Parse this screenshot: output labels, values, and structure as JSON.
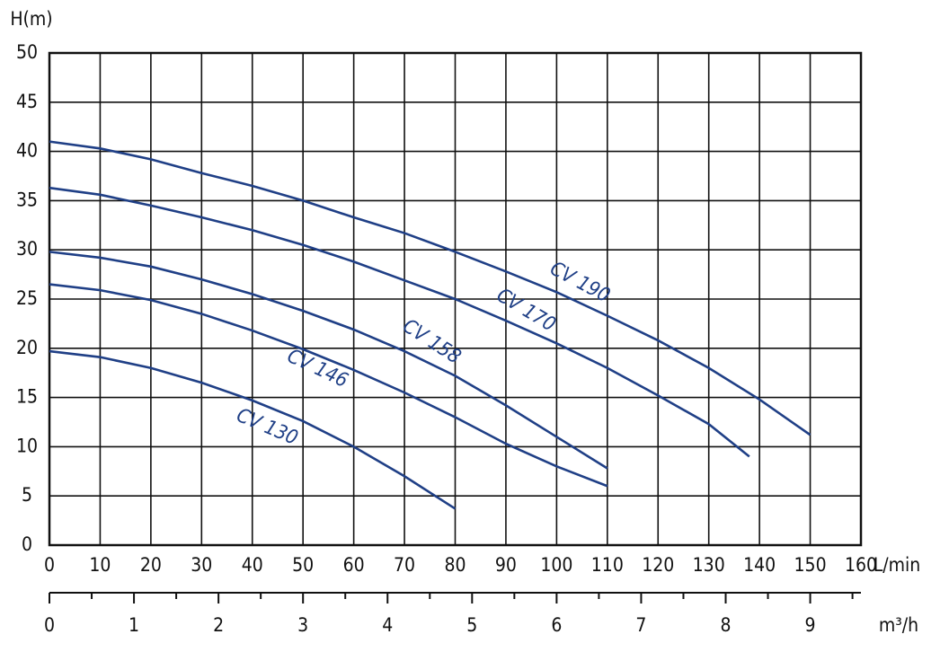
{
  "chart_data": {
    "type": "line",
    "y_label": "H(m)",
    "x_label": "L/min",
    "x2_label": "m³/h",
    "xlim": [
      0,
      160
    ],
    "xticks": [
      0,
      10,
      20,
      30,
      40,
      50,
      60,
      70,
      80,
      90,
      100,
      110,
      120,
      130,
      140,
      150,
      160
    ],
    "ylim": [
      0,
      50
    ],
    "yticks": [
      0,
      5,
      10,
      15,
      20,
      25,
      30,
      35,
      40,
      45,
      50
    ],
    "x2lim": [
      0,
      9.6
    ],
    "x2ticks": [
      0,
      1,
      2,
      3,
      4,
      5,
      6,
      7,
      8,
      9
    ],
    "x2minorticks": [
      0.5,
      1.5,
      2.5,
      3.5,
      4.5,
      5.5,
      6.5,
      7.5,
      8.5,
      9.5
    ],
    "grid": true,
    "series": [
      {
        "name": "CV 190",
        "color": "#1f3f86",
        "x": [
          0,
          10,
          20,
          30,
          40,
          50,
          60,
          70,
          80,
          90,
          100,
          110,
          120,
          130,
          140,
          150
        ],
        "values": [
          41,
          40.3,
          39.2,
          37.8,
          36.5,
          35,
          33.3,
          31.7,
          29.8,
          27.8,
          25.7,
          23.3,
          20.8,
          18,
          14.8,
          11.2
        ]
      },
      {
        "name": "CV 170",
        "color": "#1f3f86",
        "x": [
          0,
          10,
          20,
          30,
          40,
          50,
          60,
          70,
          80,
          90,
          100,
          110,
          120,
          130,
          138
        ],
        "values": [
          36.3,
          35.6,
          34.5,
          33.3,
          32,
          30.5,
          28.8,
          26.9,
          25,
          22.8,
          20.5,
          18,
          15.2,
          12.3,
          9
        ]
      },
      {
        "name": "CV 158",
        "color": "#1f3f86",
        "x": [
          0,
          10,
          20,
          30,
          40,
          50,
          60,
          70,
          80,
          90,
          100,
          110
        ],
        "values": [
          29.8,
          29.2,
          28.3,
          27,
          25.5,
          23.8,
          21.9,
          19.7,
          17.2,
          14.2,
          11,
          7.8
        ]
      },
      {
        "name": "CV 146",
        "color": "#1f3f86",
        "x": [
          0,
          10,
          20,
          30,
          40,
          50,
          60,
          70,
          80,
          90,
          100,
          110
        ],
        "values": [
          26.5,
          25.9,
          24.9,
          23.5,
          21.8,
          19.9,
          17.8,
          15.5,
          13,
          10.3,
          8,
          6
        ]
      },
      {
        "name": "CV 130",
        "color": "#1f3f86",
        "x": [
          0,
          10,
          20,
          30,
          40,
          50,
          60,
          70,
          80
        ],
        "values": [
          19.7,
          19.1,
          18,
          16.5,
          14.7,
          12.6,
          10,
          7,
          3.7
        ]
      }
    ]
  }
}
